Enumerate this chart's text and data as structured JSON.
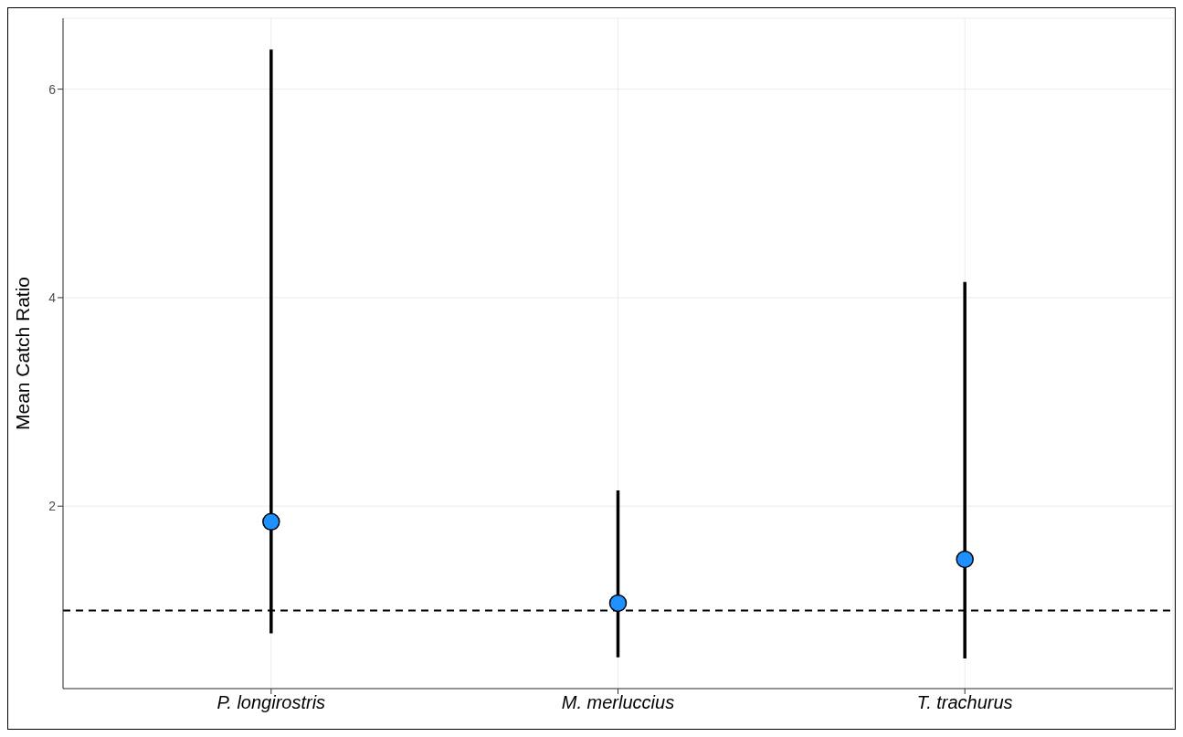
{
  "chart_data": {
    "type": "scatter",
    "ylabel": "Mean Catch Ratio",
    "categories": [
      "P. longirostris",
      "M. merluccius",
      "T. trachurus"
    ],
    "series": [
      {
        "color": "#1e90ff",
        "values": [
          1.85,
          1.07,
          1.49
        ],
        "errors": [
          [
            0.78,
            6.38
          ],
          [
            0.55,
            2.15
          ],
          [
            0.54,
            4.15
          ]
        ]
      }
    ],
    "ylim": [
      0.25,
      6.68
    ],
    "yticks": [
      2,
      4,
      6
    ],
    "grid": true,
    "marker": "circle",
    "ref_lines": [
      {
        "axis": "y",
        "value": 1,
        "line_style": "dashed",
        "color": "#000000"
      }
    ]
  }
}
